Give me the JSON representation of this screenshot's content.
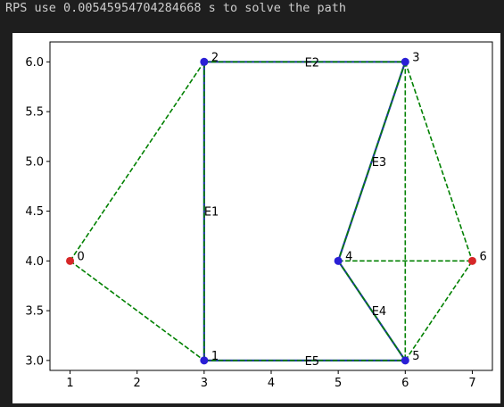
{
  "console": {
    "text": "RPS use 0.00545954704284668 s to solve the path"
  },
  "chart_data": {
    "type": "scatter",
    "title": "",
    "xlabel": "",
    "ylabel": "",
    "xlim": [
      0.7,
      7.3
    ],
    "ylim": [
      2.9,
      6.2
    ],
    "xticks": [
      1,
      2,
      3,
      4,
      5,
      6,
      7
    ],
    "yticks": [
      3.0,
      3.5,
      4.0,
      4.5,
      5.0,
      5.5,
      6.0
    ],
    "ytick_labels": [
      "3.0",
      "3.5",
      "4.0",
      "4.5",
      "5.0",
      "5.5",
      "6.0"
    ],
    "grid": false,
    "nodes": [
      {
        "id": "0",
        "x": 1,
        "y": 4,
        "color": "#d62728"
      },
      {
        "id": "1",
        "x": 3,
        "y": 3,
        "color": "#2a1fd6"
      },
      {
        "id": "2",
        "x": 3,
        "y": 6,
        "color": "#2a1fd6"
      },
      {
        "id": "3",
        "x": 6,
        "y": 6,
        "color": "#2a1fd6"
      },
      {
        "id": "4",
        "x": 5,
        "y": 4,
        "color": "#2a1fd6"
      },
      {
        "id": "5",
        "x": 6,
        "y": 3,
        "color": "#2a1fd6"
      },
      {
        "id": "6",
        "x": 7,
        "y": 4,
        "color": "#d62728"
      }
    ],
    "dashed_edges": [
      [
        0,
        1
      ],
      [
        0,
        2
      ],
      [
        1,
        2
      ],
      [
        2,
        3
      ],
      [
        3,
        4
      ],
      [
        3,
        5
      ],
      [
        3,
        6
      ],
      [
        4,
        5
      ],
      [
        4,
        6
      ],
      [
        5,
        6
      ],
      [
        1,
        5
      ]
    ],
    "path_edges": [
      {
        "from": 1,
        "to": 2,
        "label": "E1"
      },
      {
        "from": 2,
        "to": 3,
        "label": "E2"
      },
      {
        "from": 3,
        "to": 4,
        "label": "E3"
      },
      {
        "from": 4,
        "to": 5,
        "label": "E4"
      },
      {
        "from": 5,
        "to": 1,
        "label": "E5"
      }
    ],
    "colors": {
      "dashed": "#008000",
      "path": "#1f3a9f",
      "axis": "#000000"
    }
  }
}
